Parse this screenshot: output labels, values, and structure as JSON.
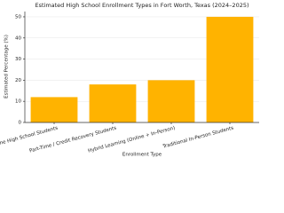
{
  "chart_data": {
    "type": "bar",
    "title": "Estimated High School Enrollment Types in Fort Worth, Texas (2024–2025)",
    "x_label": "Enrollment Type",
    "y_label": "Estimated Percentage (%)",
    "categories": [
      "Full-Time Online High School Students",
      "Part-Time / Credit Recovery Students",
      "Hybrid Learning (Online + In-Person)",
      "Traditional In-Person Students"
    ],
    "values": [
      12,
      18,
      20,
      50
    ],
    "color": "#ffb300",
    "ylim": [
      0,
      52.5
    ],
    "yticks": [
      0,
      10,
      20,
      30,
      40,
      50
    ],
    "grid": true
  }
}
